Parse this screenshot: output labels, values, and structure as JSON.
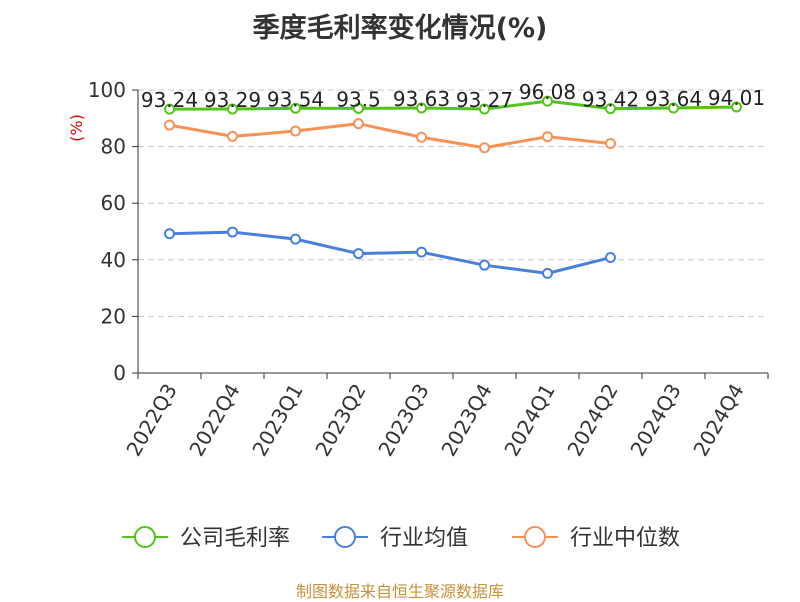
{
  "chart_data": {
    "type": "line",
    "title": "季度毛利率变化情况(%)",
    "ylabel": "(%)",
    "ylim": [
      0,
      100
    ],
    "yticks": [
      0,
      20,
      40,
      60,
      80,
      100
    ],
    "categories": [
      "2022Q3",
      "2022Q4",
      "2023Q1",
      "2023Q2",
      "2023Q3",
      "2023Q4",
      "2024Q1",
      "2024Q2",
      "2024Q3",
      "2024Q4"
    ],
    "grid": true,
    "legend_position": "bottom",
    "series": [
      {
        "name": "公司毛利率",
        "color": "#52c41a",
        "labels": true,
        "values": [
          93.24,
          93.29,
          93.54,
          93.5,
          93.63,
          93.27,
          96.08,
          93.42,
          93.64,
          94.01
        ]
      },
      {
        "name": "行业均值",
        "color": "#4a7fdc",
        "labels": false,
        "values": [
          49.2,
          49.8,
          47.3,
          42.2,
          42.7,
          38.1,
          35.2,
          40.8,
          null,
          null
        ]
      },
      {
        "name": "行业中位数",
        "color": "#f79155",
        "labels": false,
        "values": [
          87.6,
          83.6,
          85.5,
          88.1,
          83.3,
          79.6,
          83.5,
          81.1,
          null,
          null
        ]
      }
    ]
  },
  "footer": "制图数据来自恒生聚源数据库"
}
